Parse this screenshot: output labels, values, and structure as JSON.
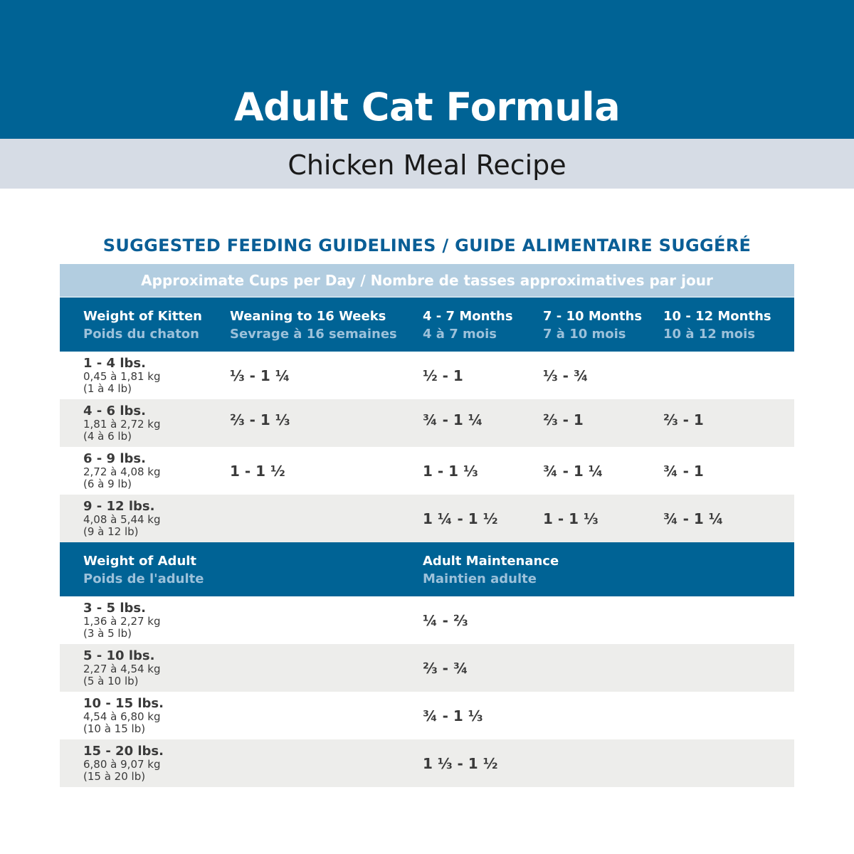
{
  "banner": {
    "title": "Adult Cat Formula",
    "subtitle": "Chicken Meal Recipe"
  },
  "heading": "SUGGESTED FEEDING GUIDELINES / GUIDE ALIMENTAIRE SUGGÉRÉ",
  "cups_label": "Approximate Cups per Day / Nombre de tasses approximatives par jour",
  "kitten_header": {
    "col1_en": "Weight of Kitten",
    "col1_fr": "Poids du chaton",
    "col2_en": "Weaning to 16 Weeks",
    "col2_fr": "Sevrage à 16 semaines",
    "col3_en": "4 - 7 Months",
    "col3_fr": "4 à 7 mois",
    "col4_en": "7 - 10 Months",
    "col4_fr": "7 à 10 mois",
    "col5_en": "10 - 12 Months",
    "col5_fr": "10 à 12 mois"
  },
  "kitten_rows": [
    {
      "lbs": "1 - 4 lbs.",
      "kg": "0,45 à 1,81 kg",
      "lb": "(1 à 4 lb)",
      "v1": "⅓ - 1 ¼",
      "v2": "½ - 1",
      "v3": "⅓ - ¾",
      "v4": ""
    },
    {
      "lbs": "4 - 6 lbs.",
      "kg": "1,81 à 2,72 kg",
      "lb": "(4 à 6 lb)",
      "v1": "⅔  - 1 ⅓",
      "v2": "¾ - 1 ¼",
      "v3": "⅔ - 1",
      "v4": "⅔ - 1"
    },
    {
      "lbs": "6 - 9 lbs.",
      "kg": "2,72 à 4,08 kg",
      "lb": "(6 à 9 lb)",
      "v1": "1  - 1 ½",
      "v2": "1 - 1 ⅓",
      "v3": "¾ - 1 ¼",
      "v4": "¾ - 1"
    },
    {
      "lbs": "9 - 12 lbs.",
      "kg": "4,08 à 5,44 kg",
      "lb": "(9 à 12 lb)",
      "v1": "",
      "v2": "1 ¼ - 1 ½",
      "v3": "1 - 1 ⅓",
      "v4": "¾ - 1 ¼"
    }
  ],
  "adult_header": {
    "col1_en": "Weight of Adult",
    "col1_fr": "Poids de l'adulte",
    "col2_en": "Adult Maintenance",
    "col2_fr": "Maintien adulte"
  },
  "adult_rows": [
    {
      "lbs": "3 - 5 lbs.",
      "kg": "1,36 à 2,27 kg",
      "lb": "(3 à 5 lb)",
      "v": "¼ - ⅔"
    },
    {
      "lbs": "5 - 10 lbs.",
      "kg": "2,27 à 4,54 kg",
      "lb": "(5 à 10 lb)",
      "v": "⅔ - ¾"
    },
    {
      "lbs": "10 - 15 lbs.",
      "kg": "4,54 à 6,80 kg",
      "lb": "(10 à 15 lb)",
      "v": "¾ - 1 ⅓"
    },
    {
      "lbs": "15 - 20 lbs.",
      "kg": "6,80 à 9,07 kg",
      "lb": "(15 à 20 lb)",
      "v": "1 ⅓ - 1 ½"
    }
  ],
  "colors": {
    "brand_blue": "#006395",
    "light_band": "#d6dce5",
    "cups_bar": "#b2cde0",
    "heading_blue": "#0a5e96",
    "alt_row": "#ededeb"
  }
}
